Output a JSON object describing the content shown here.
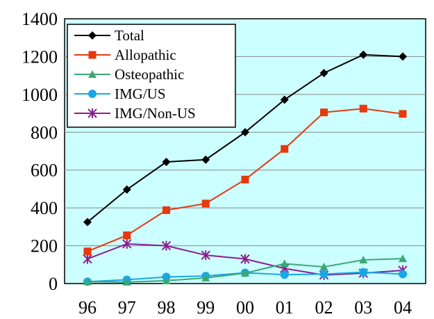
{
  "chart_data": {
    "type": "line",
    "title": "",
    "xlabel": "",
    "ylabel": "",
    "categories": [
      "96",
      "97",
      "98",
      "99",
      "00",
      "01",
      "02",
      "03",
      "04"
    ],
    "ylim": [
      0,
      1400
    ],
    "yticks": [
      0,
      200,
      400,
      600,
      800,
      1000,
      1200,
      1400
    ],
    "grid": "horizontal",
    "legend_position": "top-left",
    "plot_background": "#ccffff",
    "series": [
      {
        "name": "Total",
        "color": "#000000",
        "marker": "diamond",
        "values": [
          325,
          497,
          643,
          655,
          800,
          972,
          1113,
          1210,
          1200
        ]
      },
      {
        "name": "Allopathic",
        "color": "#e8380d",
        "marker": "square",
        "values": [
          170,
          255,
          388,
          423,
          550,
          712,
          905,
          925,
          897
        ]
      },
      {
        "name": "Osteopathic",
        "color": "#3aa876",
        "marker": "triangle",
        "values": [
          10,
          8,
          15,
          30,
          55,
          105,
          88,
          125,
          132
        ]
      },
      {
        "name": "IMG/US",
        "color": "#1ba6e6",
        "marker": "circle",
        "values": [
          10,
          20,
          35,
          40,
          57,
          47,
          50,
          60,
          50
        ]
      },
      {
        "name": "IMG/Non-US",
        "color": "#8b1f8e",
        "marker": "asterisk",
        "values": [
          130,
          210,
          200,
          150,
          130,
          80,
          45,
          55,
          70
        ]
      }
    ]
  }
}
